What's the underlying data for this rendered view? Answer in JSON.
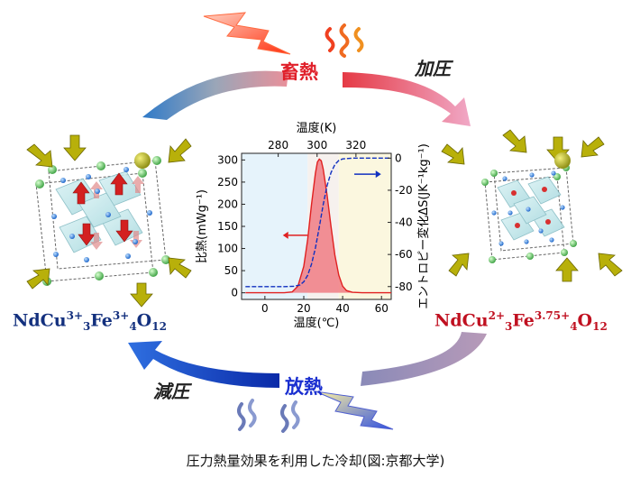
{
  "labels": {
    "heat_storage": "畜熱",
    "pressurize": "加圧",
    "depressurize": "減圧",
    "heat_release": "放熱",
    "caption": "圧力熱量効果を利用した冷却(図:京都大学)"
  },
  "formulas": {
    "left": {
      "base": "NdCu",
      "sup1": "3+",
      "sub1": "3",
      "mid": "Fe",
      "sup2": "3+",
      "sub2": "4",
      "end": "O",
      "sub3": "12"
    },
    "right": {
      "base": "NdCu",
      "sup1": "2+",
      "sub1": "3",
      "mid": "Fe",
      "sup2": "3.75+",
      "sub2": "4",
      "end": "O",
      "sub3": "12"
    }
  },
  "chart_data": {
    "type": "line",
    "title": "",
    "xlabel_bottom": "温度(℃)",
    "xlabel_top": "温度(K)",
    "ylabel_left": "比熱(mWg⁻¹)",
    "ylabel_right": "エントロピー変化ΔS(JK⁻¹kg⁻¹)",
    "x_bottom_ticks": [
      "0",
      "20",
      "40",
      "60"
    ],
    "x_top_ticks": [
      "280",
      "300",
      "320"
    ],
    "y_left_ticks": [
      "0",
      "50",
      "100",
      "150",
      "200",
      "250",
      "300"
    ],
    "y_right_ticks": [
      "0",
      "-20",
      "-40",
      "-60",
      "-80"
    ],
    "xlim": [
      -12,
      65
    ],
    "ylim_left": [
      -15,
      315
    ],
    "ylim_right": [
      -88,
      3
    ],
    "series": [
      {
        "axis": "left",
        "color": "#e02020",
        "x": [
          -10,
          0,
          10,
          14,
          17,
          20,
          22,
          24,
          26,
          27,
          28,
          29,
          30,
          32,
          34,
          36,
          38,
          40,
          42,
          45,
          50,
          60,
          65
        ],
        "y": [
          0,
          0,
          0,
          2,
          15,
          60,
          120,
          200,
          270,
          295,
          302,
          298,
          280,
          220,
          150,
          85,
          40,
          15,
          5,
          1,
          0,
          0,
          0
        ]
      },
      {
        "axis": "right",
        "color": "#1030c0",
        "x": [
          -10,
          0,
          10,
          15,
          18,
          20,
          22,
          24,
          26,
          28,
          30,
          32,
          34,
          36,
          38,
          40,
          45,
          50,
          60,
          65
        ],
        "y": [
          -80,
          -80,
          -80,
          -79.8,
          -79,
          -77,
          -73,
          -66,
          -56,
          -43,
          -29,
          -17,
          -9,
          -4,
          -1.5,
          -0.5,
          0,
          0,
          0,
          0
        ]
      }
    ]
  }
}
